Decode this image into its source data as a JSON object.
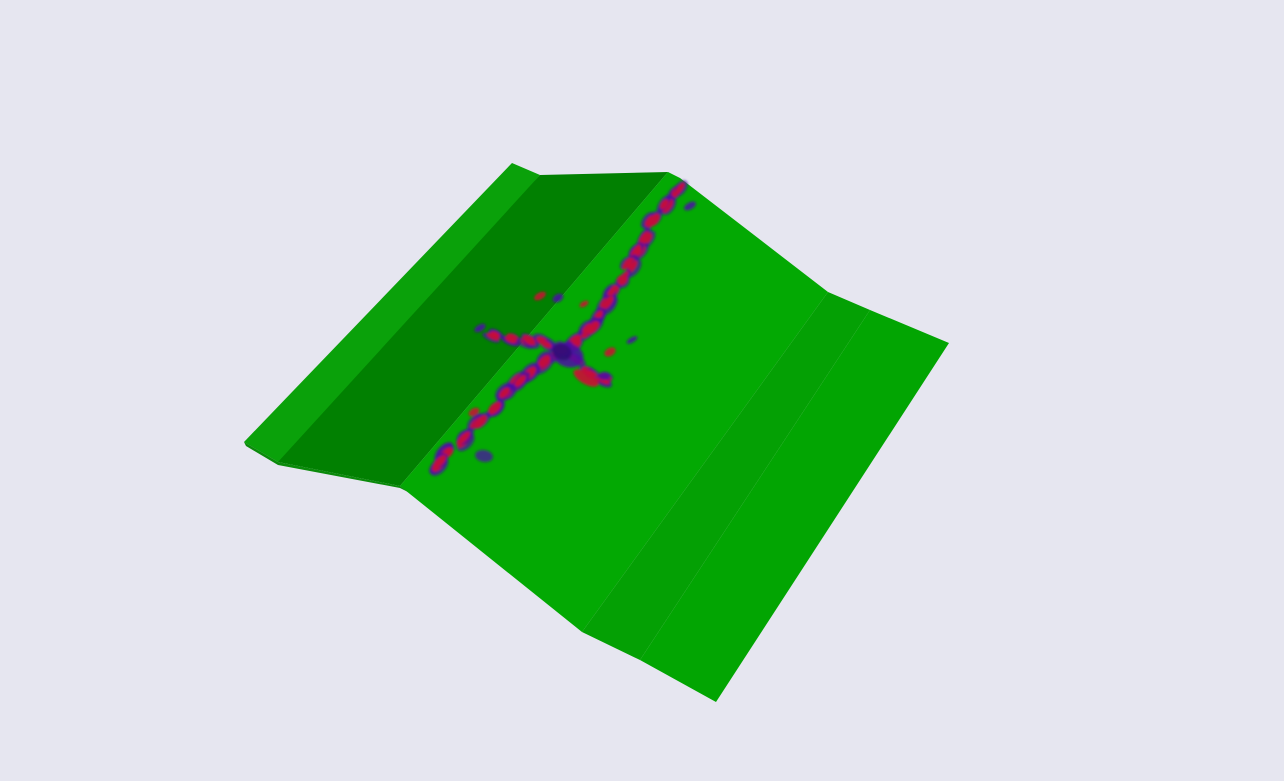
{
  "scene": {
    "background": "#e6e6f0",
    "surface_colors": {
      "flat_left": "#0aa10a",
      "slope_left": "#018001",
      "ridge_center": "#03a903",
      "slope_right": "#04a004",
      "flat_right": "#02a502"
    },
    "feature_colors": {
      "core": "#cc0b33",
      "halo": "#4b11a6",
      "outline": "#2a0d6b"
    }
  }
}
